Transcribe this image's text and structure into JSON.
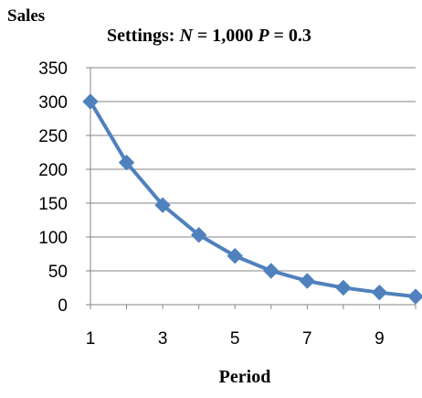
{
  "chart_data": {
    "type": "line",
    "title_prefix": "Settings: ",
    "title_var1": "N",
    "title_val1": " = 1,000 ",
    "title_var2": "P",
    "title_val2": " = 0.3",
    "xlabel": "Period",
    "ylabel": "Sales",
    "x": [
      1,
      2,
      3,
      4,
      5,
      6,
      7,
      8,
      9,
      10
    ],
    "x_tick_labels": [
      "1",
      "3",
      "5",
      "7",
      "9"
    ],
    "x_tick_values": [
      1,
      3,
      5,
      7,
      9
    ],
    "xlim": [
      1,
      10
    ],
    "y_tick_values": [
      0,
      50,
      100,
      150,
      200,
      250,
      300,
      350
    ],
    "y_tick_labels": [
      "0",
      "50",
      "100",
      "150",
      "200",
      "250",
      "300",
      "350"
    ],
    "ylim": [
      0,
      350
    ],
    "grid": true,
    "series": [
      {
        "values": [
          300,
          210,
          147,
          103,
          72,
          50,
          35,
          25,
          18,
          12
        ],
        "color": "#4F81BD",
        "marker": "diamond"
      }
    ]
  }
}
